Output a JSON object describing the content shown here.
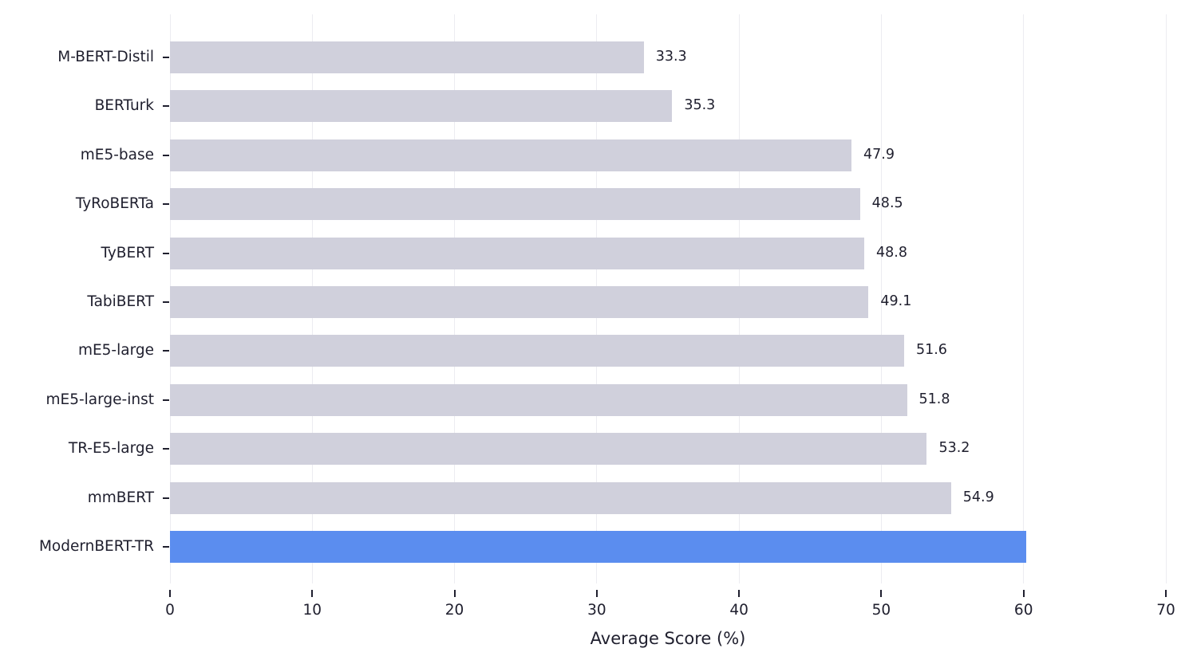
{
  "chart_data": {
    "type": "bar",
    "orientation": "horizontal",
    "title": "",
    "xlabel": "Average Score (%)",
    "ylabel": "",
    "xlim": [
      0,
      70
    ],
    "xticks": [
      0,
      10,
      20,
      30,
      40,
      50,
      60,
      70
    ],
    "grid": "vertical",
    "legend": null,
    "categories": [
      "M-BERT-Distil",
      "BERTurk",
      "mE5-base",
      "TyRoBERTa",
      "TyBERT",
      "TabiBERT",
      "mE5-large",
      "mE5-large-inst",
      "TR-E5-large",
      "mmBERT",
      "ModernBERT-TR"
    ],
    "values": [
      33.3,
      35.3,
      47.9,
      48.5,
      48.8,
      49.1,
      51.6,
      51.8,
      53.2,
      54.9,
      60.2
    ],
    "value_labels": [
      "33.3",
      "35.3",
      "47.9",
      "48.5",
      "48.8",
      "49.1",
      "51.6",
      "51.8",
      "53.2",
      "54.9",
      ""
    ],
    "colors": {
      "default_bar": "#d0d0dc",
      "highlight_bar": "#5b8def",
      "highlight_category": "ModernBERT-TR",
      "grid": "#ececf1",
      "text": "#1f1f2e"
    }
  }
}
